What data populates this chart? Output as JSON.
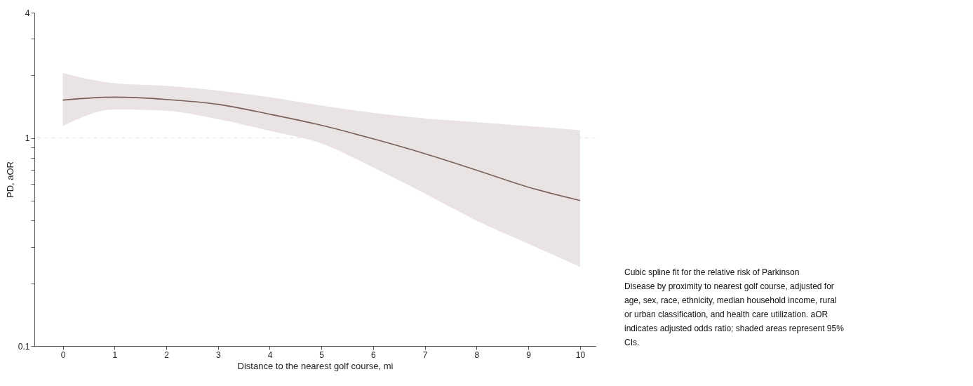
{
  "chart_data": {
    "type": "line",
    "xlabel": "Distance to the nearest golf course, mi",
    "ylabel": "PD, aOR",
    "x": [
      0,
      1,
      2,
      3,
      4,
      5,
      6,
      7,
      8,
      9,
      10
    ],
    "series": [
      {
        "color": "#7a5e5a",
        "values": [
          1.52,
          1.57,
          1.53,
          1.45,
          1.3,
          1.15,
          0.99,
          0.84,
          0.7,
          0.58,
          0.5
        ],
        "lower": [
          1.14,
          1.37,
          1.35,
          1.23,
          1.08,
          0.94,
          0.72,
          0.54,
          0.4,
          0.31,
          0.24
        ],
        "upper": [
          2.05,
          1.83,
          1.78,
          1.69,
          1.57,
          1.43,
          1.32,
          1.24,
          1.19,
          1.14,
          1.09
        ]
      }
    ],
    "log": "y",
    "xlim": [
      -0.55,
      10.3
    ],
    "ylim": [
      0.1,
      4
    ],
    "xticks": [
      0,
      1,
      2,
      3,
      4,
      5,
      6,
      7,
      8,
      9,
      10
    ],
    "yticks": [
      0.1,
      {
        "value": 0.2,
        "label": null
      },
      {
        "value": 0.3,
        "label": null
      },
      {
        "value": 0.4,
        "label": null
      },
      {
        "value": 0.5,
        "label": null
      },
      {
        "value": 0.6,
        "label": null
      },
      {
        "value": 0.7,
        "label": null
      },
      {
        "value": 0.8,
        "label": null
      },
      {
        "value": 0.9,
        "label": null
      },
      1,
      {
        "value": 2,
        "label": null
      },
      {
        "value": 3,
        "label": null
      },
      4
    ],
    "ref_lines": [
      {
        "axis": "y",
        "value": 1,
        "color": "#e6e6e6",
        "line_style": "dashed"
      }
    ],
    "grid": false,
    "marker": "none",
    "line_style": "solid",
    "annotations": [
      "Cubic spline fit for the relative risk of Parkinson Disease by proximity to nearest golf course, adjusted for age, sex, race, ethnicity, median household income, rural or urban classification, and health care utilization. aOR indicates adjusted odds ratio; shaded areas represent 95% CIs."
    ]
  }
}
